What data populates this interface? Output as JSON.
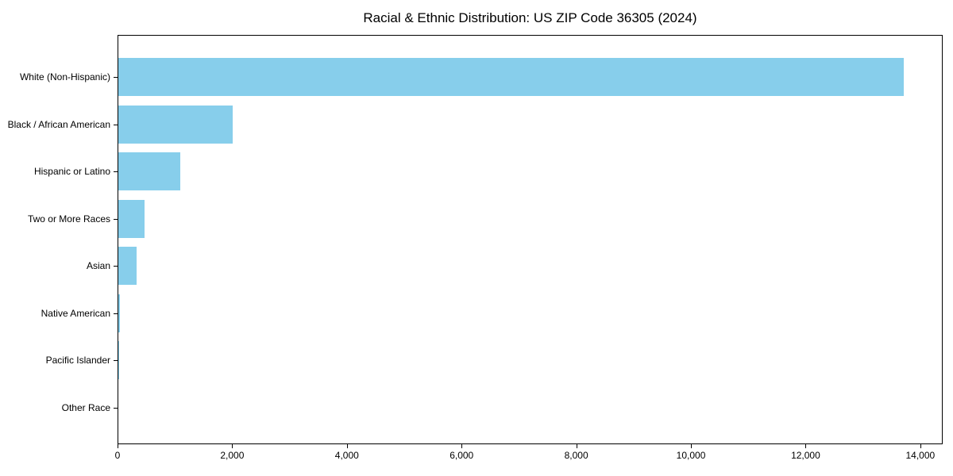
{
  "chart_data": {
    "type": "bar",
    "orientation": "horizontal",
    "title": "Racial & Ethnic Distribution: US ZIP Code 36305 (2024)",
    "categories": [
      "White (Non-Hispanic)",
      "Black / African American",
      "Hispanic or Latino",
      "Two or More Races",
      "Asian",
      "Native American",
      "Pacific Islander",
      "Other Race"
    ],
    "values": [
      13700,
      2000,
      1080,
      460,
      320,
      30,
      20,
      0
    ],
    "xlabel": "",
    "ylabel": "",
    "xlim": [
      0,
      14390
    ],
    "x_ticks": [
      0,
      2000,
      4000,
      6000,
      8000,
      10000,
      12000,
      14000
    ],
    "bar_color": "#87CEEB",
    "axis_color": "#000000",
    "text_color": "#000000",
    "background_color": "#ffffff",
    "grid": false,
    "legend": null
  }
}
